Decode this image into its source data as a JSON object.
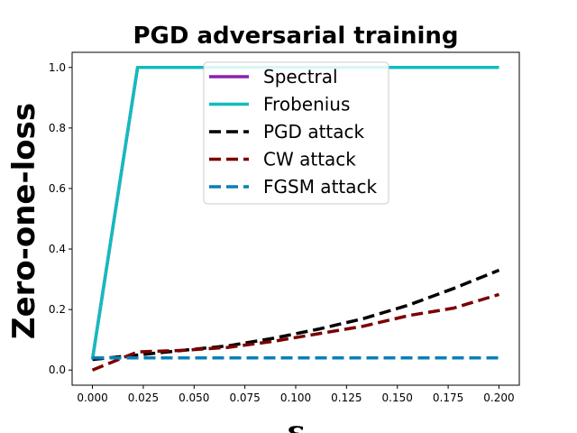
{
  "chart_data": {
    "type": "line",
    "title": "PGD adversarial training",
    "xlabel": "ε",
    "ylabel": "Zero-one-loss",
    "xlim": [
      -0.01,
      0.21
    ],
    "ylim": [
      -0.05,
      1.05
    ],
    "x_ticks": [
      "0.000",
      "0.025",
      "0.050",
      "0.075",
      "0.100",
      "0.125",
      "0.150",
      "0.175",
      "0.200"
    ],
    "y_ticks": [
      "0.0",
      "0.2",
      "0.4",
      "0.6",
      "0.8",
      "1.0"
    ],
    "legend_position": "top-center",
    "grid": false,
    "series": [
      {
        "name": "Spectral",
        "color": "#8a22ae",
        "dashed": false,
        "x": [
          0.0,
          0.0222,
          0.2
        ],
        "y": [
          0.035,
          1.0,
          1.0
        ]
      },
      {
        "name": "Frobenius",
        "color": "#12bcbc",
        "dashed": false,
        "x": [
          0.0,
          0.0222,
          0.2
        ],
        "y": [
          0.035,
          1.0,
          1.0
        ]
      },
      {
        "name": "PGD attack",
        "color": "#000000",
        "dashed": true,
        "x": [
          0.0,
          0.0222,
          0.0444,
          0.0667,
          0.0889,
          0.1111,
          0.1333,
          0.1556,
          0.1778,
          0.2
        ],
        "y": [
          0.035,
          0.05,
          0.065,
          0.08,
          0.105,
          0.135,
          0.17,
          0.215,
          0.27,
          0.33
        ]
      },
      {
        "name": "CW attack",
        "color": "#7b0000",
        "dashed": true,
        "x": [
          0.0,
          0.0222,
          0.0444,
          0.0667,
          0.0889,
          0.1111,
          0.1333,
          0.1556,
          0.1778,
          0.2
        ],
        "y": [
          0.0,
          0.06,
          0.065,
          0.075,
          0.095,
          0.12,
          0.145,
          0.18,
          0.205,
          0.25
        ]
      },
      {
        "name": "FGSM attack",
        "color": "#0a7fb7",
        "dashed": true,
        "x": [
          0.0,
          0.2
        ],
        "y": [
          0.04,
          0.04
        ]
      }
    ]
  }
}
